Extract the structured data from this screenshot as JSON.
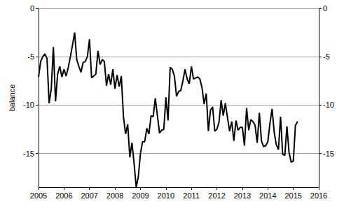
{
  "chart_data": {
    "type": "line",
    "y_label": "balance",
    "color": "#000000",
    "grid": true,
    "xlim": [
      2005,
      2016
    ],
    "xticks": [
      2005,
      2006,
      2007,
      2008,
      2009,
      2010,
      2011,
      2012,
      2013,
      2014,
      2015,
      2016
    ],
    "ylim": [
      -18.5,
      0
    ],
    "yticks": [
      0,
      -5,
      -10,
      -15
    ],
    "x": [
      2005.0,
      2005.083,
      2005.167,
      2005.25,
      2005.333,
      2005.417,
      2005.5,
      2005.583,
      2005.667,
      2005.75,
      2005.833,
      2005.917,
      2006.0,
      2006.083,
      2006.167,
      2006.25,
      2006.333,
      2006.417,
      2006.5,
      2006.583,
      2006.667,
      2006.75,
      2006.833,
      2006.917,
      2007.0,
      2007.083,
      2007.167,
      2007.25,
      2007.333,
      2007.417,
      2007.5,
      2007.583,
      2007.667,
      2007.75,
      2007.833,
      2007.917,
      2008.0,
      2008.083,
      2008.167,
      2008.25,
      2008.333,
      2008.417,
      2008.5,
      2008.583,
      2008.667,
      2008.75,
      2008.833,
      2008.917,
      2009.0,
      2009.083,
      2009.167,
      2009.25,
      2009.333,
      2009.417,
      2009.5,
      2009.583,
      2009.667,
      2009.75,
      2009.833,
      2009.917,
      2010.0,
      2010.083,
      2010.167,
      2010.25,
      2010.333,
      2010.417,
      2010.5,
      2010.583,
      2010.667,
      2010.75,
      2010.833,
      2010.917,
      2011.0,
      2011.083,
      2011.167,
      2011.25,
      2011.333,
      2011.417,
      2011.5,
      2011.583,
      2011.667,
      2011.75,
      2011.833,
      2011.917,
      2012.0,
      2012.083,
      2012.167,
      2012.25,
      2012.333,
      2012.417,
      2012.5,
      2012.583,
      2012.667,
      2012.75,
      2012.833,
      2012.917,
      2013.0,
      2013.083,
      2013.167,
      2013.25,
      2013.333,
      2013.417,
      2013.5,
      2013.583,
      2013.667,
      2013.75,
      2013.833,
      2013.917,
      2014.0,
      2014.083,
      2014.167,
      2014.25,
      2014.333,
      2014.417,
      2014.5,
      2014.583,
      2014.667,
      2014.75,
      2014.833,
      2014.917,
      2015.0,
      2015.083,
      2015.167
    ],
    "values": [
      -7.1,
      -5.5,
      -5.0,
      -4.7,
      -5.2,
      -9.8,
      -8.3,
      -4.0,
      -9.6,
      -6.8,
      -6.0,
      -7.1,
      -6.3,
      -7.0,
      -6.1,
      -5.0,
      -3.8,
      -2.5,
      -5.3,
      -6.0,
      -6.6,
      -5.6,
      -5.5,
      -5.0,
      -3.2,
      -7.2,
      -7.0,
      -6.8,
      -4.4,
      -5.8,
      -5.3,
      -5.5,
      -8.0,
      -6.8,
      -7.9,
      -6.3,
      -8.3,
      -6.9,
      -8.1,
      -7.0,
      -11.2,
      -13.0,
      -12.0,
      -15.4,
      -13.9,
      -16.0,
      -18.5,
      -17.4,
      -15.0,
      -13.8,
      -13.8,
      -12.4,
      -13.0,
      -11.1,
      -11.2,
      -9.3,
      -11.1,
      -12.9,
      -12.6,
      -12.5,
      -9.2,
      -11.6,
      -6.1,
      -6.3,
      -7.0,
      -9.1,
      -8.6,
      -8.5,
      -7.5,
      -6.3,
      -7.3,
      -7.8,
      -6.0,
      -7.3,
      -7.2,
      -7.1,
      -7.3,
      -8.2,
      -9.9,
      -8.8,
      -12.7,
      -10.5,
      -10.2,
      -12.7,
      -12.5,
      -11.8,
      -9.5,
      -11.1,
      -9.8,
      -11.3,
      -12.7,
      -11.7,
      -13.7,
      -11.6,
      -12.6,
      -12.3,
      -12.3,
      -14.2,
      -10.3,
      -12.6,
      -11.5,
      -11.7,
      -12.1,
      -13.9,
      -10.8,
      -13.7,
      -14.3,
      -14.2,
      -13.8,
      -11.9,
      -10.4,
      -12.8,
      -14.1,
      -14.6,
      -11.2,
      -15.1,
      -15.2,
      -12.2,
      -14.9,
      -15.9,
      -15.8,
      -12.1,
      -11.7
    ]
  }
}
